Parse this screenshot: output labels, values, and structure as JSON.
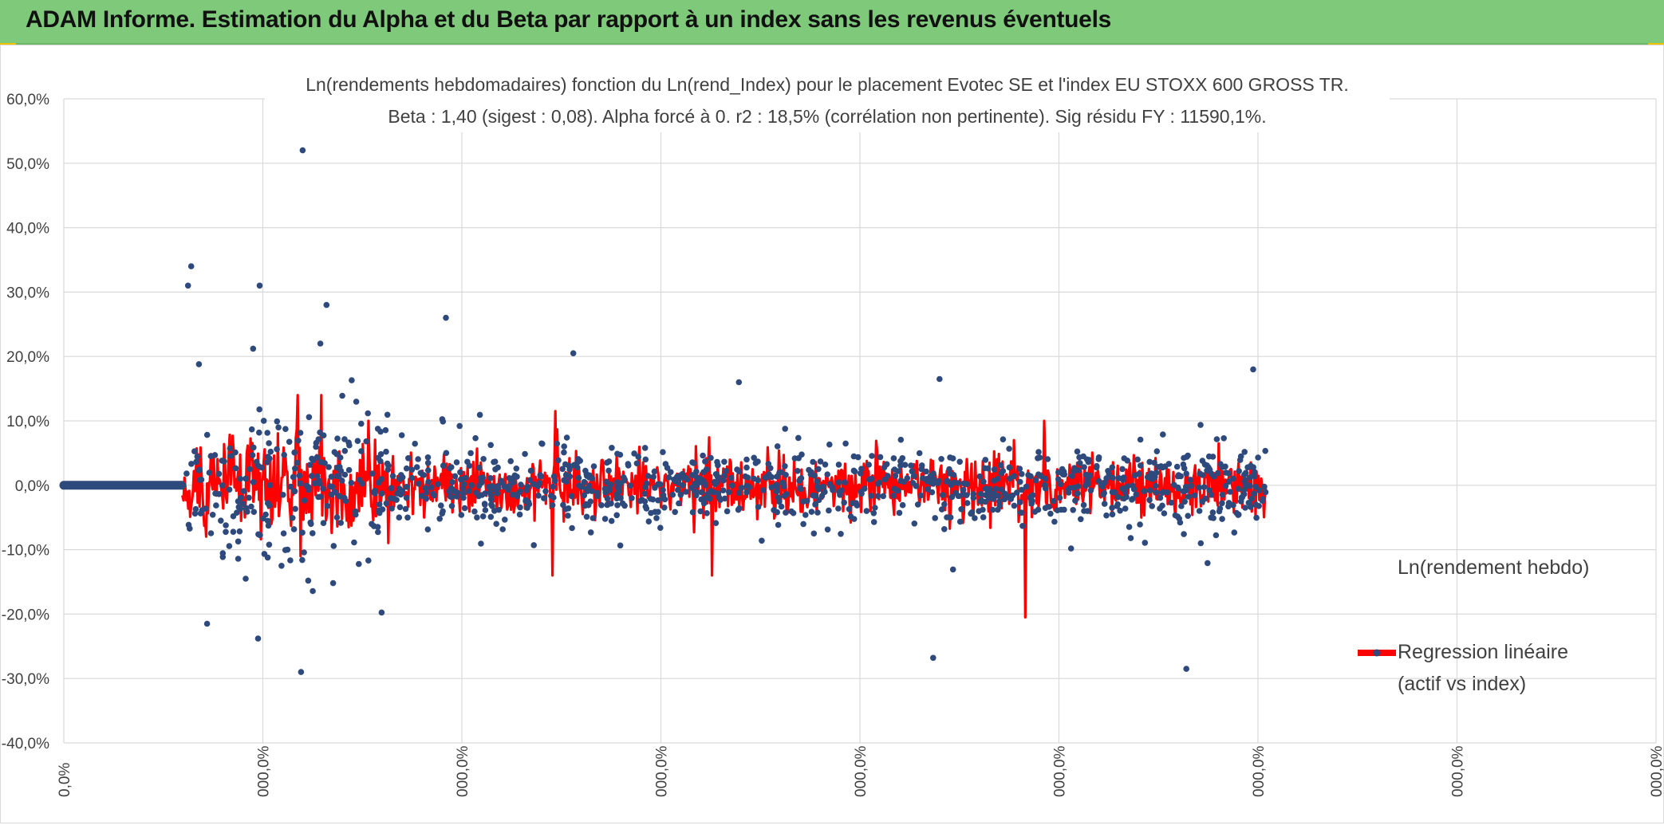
{
  "header": {
    "title": "ADAM Informe. Estimation du Alpha et du Beta par rapport à un index sans les revenus éventuels",
    "bar_color": "#7fc97a",
    "corner_color": "#f2c200"
  },
  "chart_data": {
    "type": "scatter",
    "title_lines": [
      "Ln(rendements hebdomadaires) fonction du Ln(rend_Index) pour le placement Evotec SE et l'index EU STOXX 600 GROSS TR.",
      "Beta : 1,40 (sigest : 0,08).  Alpha forcé à 0. r2 : 18,5% (corrélation non pertinente). Sig résidu FY : 11590,1%."
    ],
    "xlabel": "",
    "ylabel": "",
    "ylim": [
      -0.4,
      0.6
    ],
    "y_ticks": [
      {
        "value": 0.6,
        "label": "60,0%"
      },
      {
        "value": 0.5,
        "label": "50,0%"
      },
      {
        "value": 0.4,
        "label": "40,0%"
      },
      {
        "value": 0.3,
        "label": "30,0%"
      },
      {
        "value": 0.2,
        "label": "20,0%"
      },
      {
        "value": 0.1,
        "label": "10,0%"
      },
      {
        "value": 0.0,
        "label": "0,0%"
      },
      {
        "value": -0.1,
        "label": "-10,0%"
      },
      {
        "value": -0.2,
        "label": "-20,0%"
      },
      {
        "value": -0.3,
        "label": "-30,0%"
      },
      {
        "value": -0.4,
        "label": "-40,0%"
      }
    ],
    "x_ticks": [
      "0,0%",
      "000,0%",
      "000,0%",
      "000,0%",
      "000,0%",
      "000,0%",
      "000,0%",
      "000,0%",
      "000,0%"
    ],
    "grid": true,
    "legend_position": "bottom-right",
    "series": [
      {
        "name": "Ln(rendement hebdo)",
        "kind": "points",
        "color": "#2e4a7d",
        "count": 1150
      },
      {
        "name": "Regression linéaire (actif vs index)",
        "kind": "line",
        "color": "#ff0000",
        "beta": 1.4,
        "alpha": 0
      }
    ],
    "flat_segment": {
      "x_start": 0.0,
      "x_end": 0.074,
      "y": 0.0
    },
    "data_start_x": 0.074,
    "data_end_x": 0.755,
    "highlighted_points": [
      {
        "x": 0.15,
        "y": 0.52
      },
      {
        "x": 0.08,
        "y": 0.34
      },
      {
        "x": 0.078,
        "y": 0.31
      },
      {
        "x": 0.123,
        "y": 0.31
      },
      {
        "x": 0.165,
        "y": 0.28
      },
      {
        "x": 0.24,
        "y": 0.26
      },
      {
        "x": 0.32,
        "y": 0.205
      },
      {
        "x": 0.149,
        "y": -0.29
      },
      {
        "x": 0.546,
        "y": -0.268
      },
      {
        "x": 0.705,
        "y": -0.285
      },
      {
        "x": 0.09,
        "y": -0.215
      },
      {
        "x": 0.122,
        "y": -0.238
      },
      {
        "x": 0.747,
        "y": 0.18
      },
      {
        "x": 0.55,
        "y": 0.165
      },
      {
        "x": 0.424,
        "y": 0.16
      }
    ],
    "regression_extremes": [
      {
        "x": 0.604,
        "y": -0.205
      },
      {
        "x": 0.307,
        "y": -0.14
      },
      {
        "x": 0.407,
        "y": -0.14
      },
      {
        "x": 0.147,
        "y": 0.14
      },
      {
        "x": 0.162,
        "y": 0.14
      },
      {
        "x": 0.309,
        "y": 0.115
      },
      {
        "x": 0.616,
        "y": 0.1
      }
    ]
  },
  "legend": {
    "items": [
      {
        "label_lines": [
          "Ln(rendement hebdo)"
        ],
        "color": "#2e4a7d"
      },
      {
        "label_lines": [
          "Regression linéaire",
          "(actif vs index)"
        ],
        "color": "#ff0000"
      }
    ]
  }
}
